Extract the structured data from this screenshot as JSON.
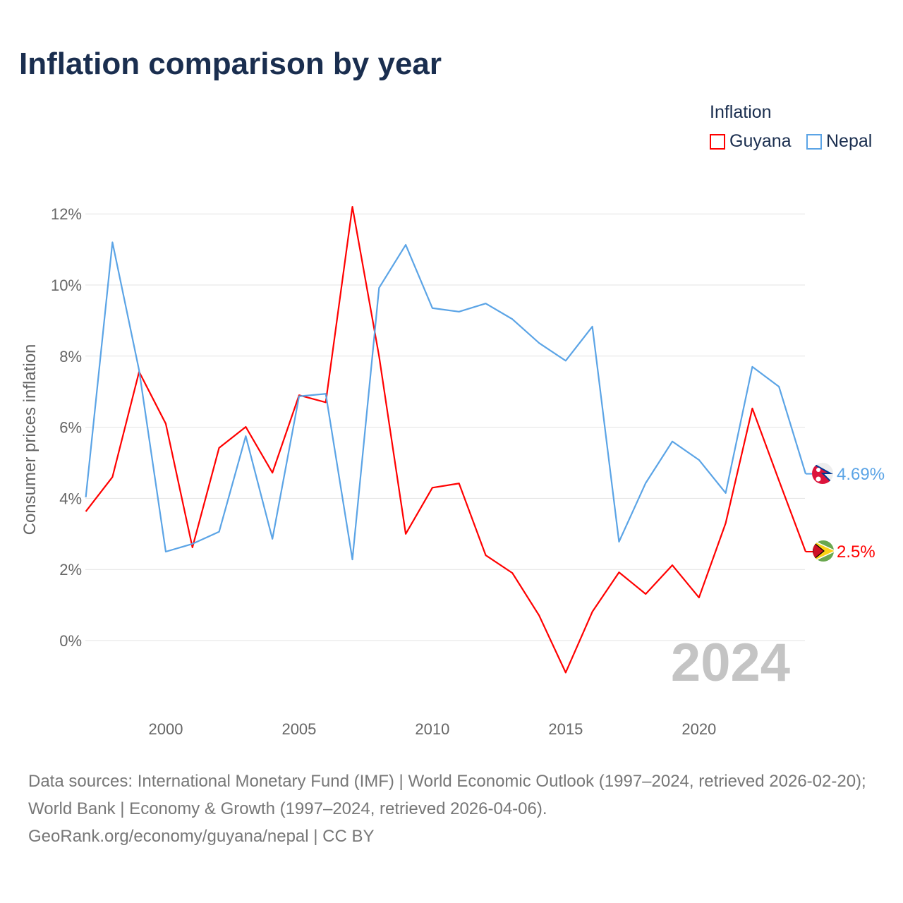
{
  "title": "Inflation comparison by year",
  "legend": {
    "title": "Inflation",
    "items": [
      {
        "name": "Guyana",
        "color": "#ff0000"
      },
      {
        "name": "Nepal",
        "color": "#5ba4e6"
      }
    ]
  },
  "source": {
    "line1": "Data sources: International Monetary Fund (IMF) | World Economic Outlook (1997–2024, retrieved 2026-02-20); World Bank | Economy & Growth (1997–2024, retrieved 2026-04-06).",
    "line2": "GeoRank.org/economy/guyana/nepal | CC BY"
  },
  "chart_data": {
    "type": "line",
    "title": "Inflation comparison by year",
    "ylabel": "Consumer prices inflation",
    "xlabel": "",
    "ylim": [
      -2,
      12
    ],
    "xlim": [
      1997,
      2024
    ],
    "yticks": [
      0,
      2,
      4,
      6,
      8,
      10,
      12
    ],
    "ytick_labels": [
      "0%",
      "2%",
      "4%",
      "6%",
      "8%",
      "10%",
      "12%"
    ],
    "xticks": [
      2000,
      2005,
      2010,
      2015,
      2020
    ],
    "xtick_labels": [
      "2000",
      "2005",
      "2010",
      "2015",
      "2020"
    ],
    "grid": true,
    "legend_position": "top-right",
    "year_watermark": "2024",
    "x": [
      1997,
      1998,
      1999,
      2000,
      2001,
      2002,
      2003,
      2004,
      2005,
      2006,
      2007,
      2008,
      2009,
      2010,
      2011,
      2012,
      2013,
      2014,
      2015,
      2016,
      2017,
      2018,
      2019,
      2020,
      2021,
      2022,
      2023,
      2024
    ],
    "series": [
      {
        "name": "Guyana",
        "color": "#ff0000",
        "end_label": "2.5%",
        "values": [
          3.63,
          4.6,
          7.56,
          6.1,
          2.62,
          5.42,
          6.01,
          4.72,
          6.9,
          6.7,
          12.2,
          8.0,
          3.0,
          4.3,
          4.42,
          2.4,
          1.9,
          0.71,
          -0.9,
          0.81,
          1.92,
          1.31,
          2.12,
          1.21,
          3.3,
          6.53,
          4.5,
          2.5
        ]
      },
      {
        "name": "Nepal",
        "color": "#5ba4e6",
        "end_label": "4.69%",
        "values": [
          4.03,
          11.2,
          7.6,
          2.5,
          2.72,
          3.06,
          5.75,
          2.86,
          6.87,
          6.94,
          2.28,
          9.92,
          11.13,
          9.35,
          9.25,
          9.48,
          9.04,
          8.37,
          7.87,
          8.83,
          2.78,
          4.43,
          5.6,
          5.08,
          4.15,
          7.7,
          7.14,
          4.69
        ]
      }
    ]
  }
}
